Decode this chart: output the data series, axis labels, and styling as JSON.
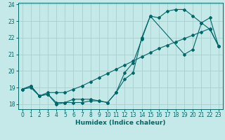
{
  "xlabel": "Humidex (Indice chaleur)",
  "bg_color": "#c5e8e8",
  "grid_color": "#a8cece",
  "line_color": "#006868",
  "xlim": [
    -0.5,
    23.5
  ],
  "ylim": [
    17.7,
    24.1
  ],
  "yticks": [
    18,
    19,
    20,
    21,
    22,
    23,
    24
  ],
  "xticks": [
    0,
    1,
    2,
    3,
    4,
    5,
    6,
    7,
    8,
    9,
    10,
    11,
    12,
    13,
    14,
    15,
    16,
    17,
    18,
    19,
    20,
    21,
    22,
    23
  ],
  "line1_x": [
    0,
    1,
    2,
    3,
    4,
    5,
    6,
    7,
    8,
    9,
    10,
    11,
    12,
    13,
    14,
    15,
    16,
    17,
    18,
    19,
    20,
    21,
    22,
    23
  ],
  "line1_y": [
    18.9,
    19.1,
    18.5,
    18.6,
    18.1,
    18.1,
    18.3,
    18.3,
    18.3,
    18.2,
    18.1,
    18.7,
    19.9,
    20.5,
    21.9,
    23.3,
    23.2,
    23.6,
    23.7,
    23.7,
    23.3,
    22.9,
    22.5,
    21.5
  ],
  "line2_x": [
    0,
    1,
    2,
    3,
    4,
    5,
    6,
    7,
    8,
    9,
    10,
    11,
    12,
    13,
    14,
    15,
    19,
    20,
    21,
    22,
    23
  ],
  "line2_y": [
    18.9,
    19.1,
    18.5,
    18.6,
    18.0,
    18.1,
    18.1,
    18.1,
    18.2,
    18.2,
    18.1,
    18.7,
    19.5,
    19.9,
    22.0,
    23.3,
    21.0,
    21.3,
    22.9,
    23.2,
    21.5
  ],
  "line3_x": [
    0,
    1,
    2,
    3,
    4,
    5,
    6,
    7,
    8,
    9,
    10,
    11,
    12,
    13,
    14,
    15,
    16,
    17,
    18,
    19,
    20,
    21,
    22,
    23
  ],
  "line3_y": [
    18.9,
    19.0,
    18.5,
    18.7,
    18.7,
    18.7,
    18.9,
    19.1,
    19.35,
    19.6,
    19.85,
    20.1,
    20.35,
    20.6,
    20.85,
    21.1,
    21.35,
    21.55,
    21.75,
    21.95,
    22.15,
    22.35,
    22.55,
    21.5
  ]
}
